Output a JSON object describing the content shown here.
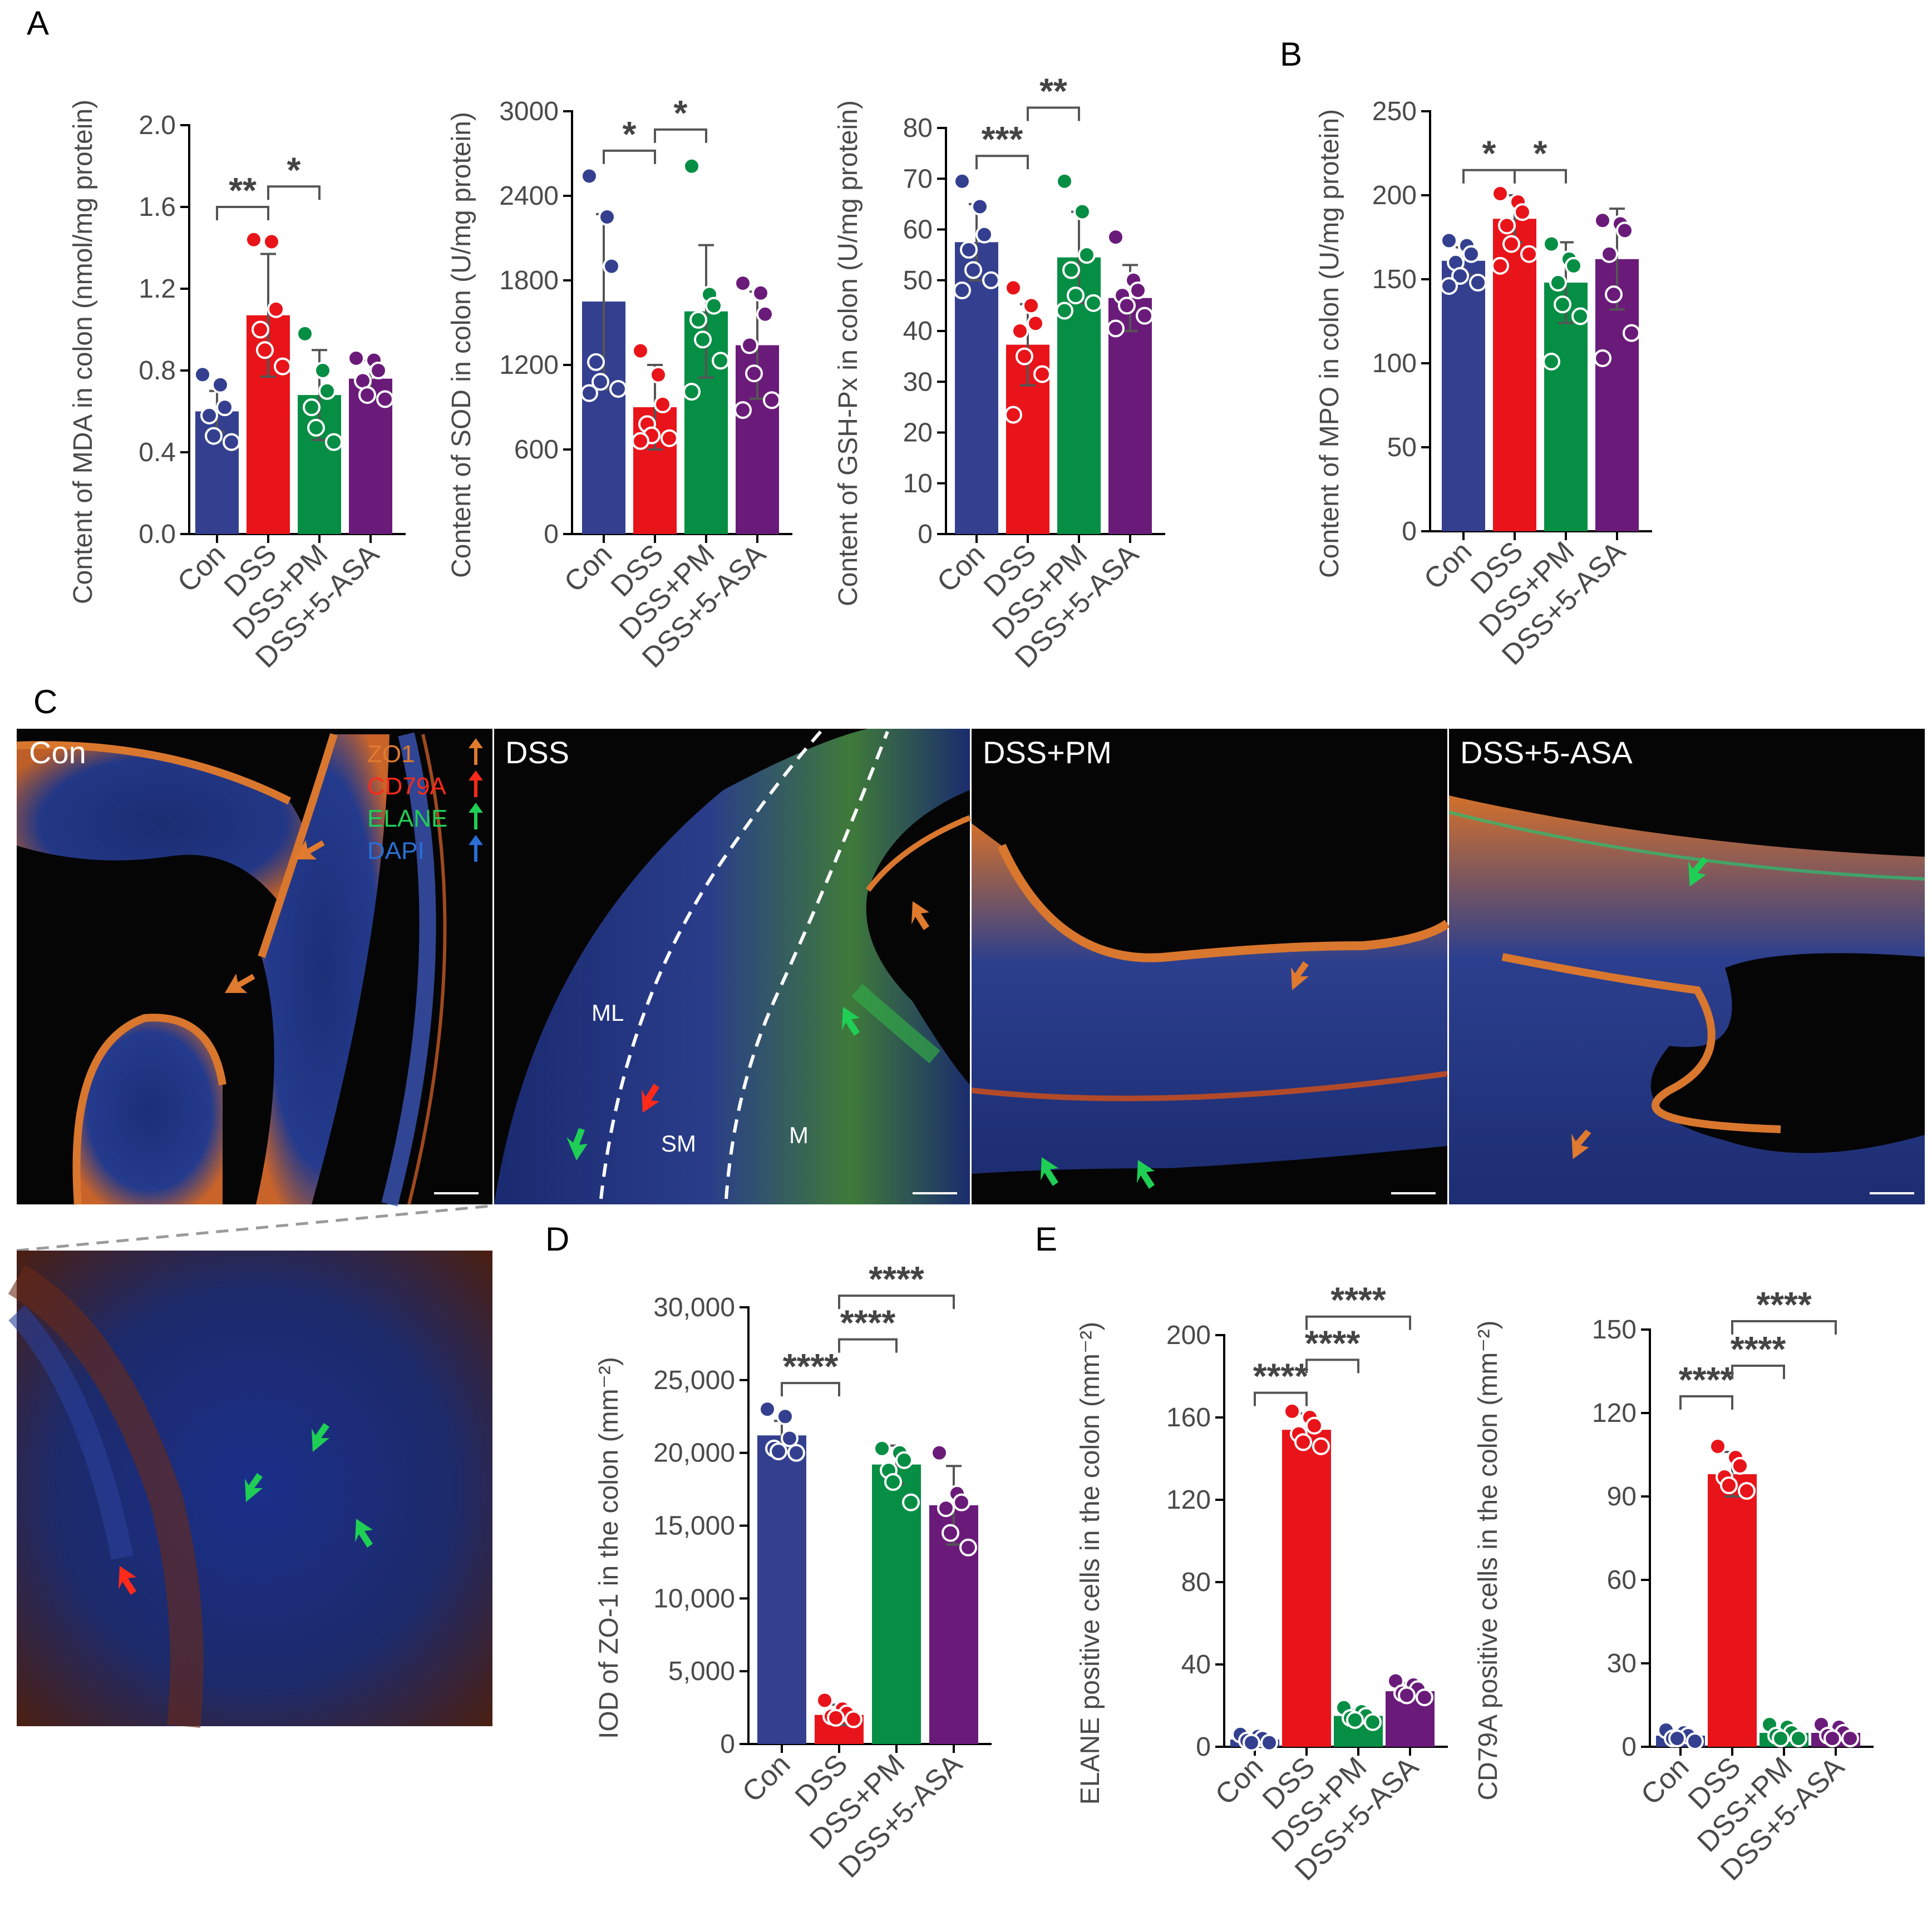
{
  "panel_letters": {
    "A": "A",
    "B": "B",
    "C": "C",
    "D": "D",
    "E": "E"
  },
  "colors": {
    "Con": "#34408f",
    "DSS": "#e8141a",
    "DSS+PM": "#068e44",
    "DSS+5-ASA": "#6a1b7a"
  },
  "images": {
    "panels": [
      {
        "label": "Con"
      },
      {
        "label": "DSS"
      },
      {
        "label": "DSS+PM"
      },
      {
        "label": "DSS+5-ASA"
      }
    ],
    "legend": [
      {
        "text": "ZO1",
        "color": "#e07a2e"
      },
      {
        "text": "CD79A",
        "color": "#ff2a1a"
      },
      {
        "text": "ELANE",
        "color": "#1fcf55"
      },
      {
        "text": "DAPI",
        "color": "#2a6fd6"
      }
    ],
    "dss_region_labels": [
      "ML",
      "SM",
      "M"
    ]
  },
  "chart_data": [
    {
      "id": "mda",
      "panel": "A",
      "type": "bar",
      "categories": [
        "Con",
        "DSS",
        "DSS+PM",
        "DSS+5-ASA"
      ],
      "values": [
        0.6,
        1.07,
        0.68,
        0.76
      ],
      "errors": [
        0.1,
        0.3,
        0.22,
        0.09
      ],
      "points": [
        [
          0.78,
          0.73,
          0.62,
          0.58,
          0.48,
          0.45
        ],
        [
          1.44,
          1.43,
          1.1,
          1.0,
          0.9,
          0.82
        ],
        [
          0.98,
          0.8,
          0.7,
          0.62,
          0.52,
          0.45
        ],
        [
          0.86,
          0.85,
          0.8,
          0.75,
          0.68,
          0.66
        ]
      ],
      "ylabel": "Content of MDA in colon (nmol/mg protein)",
      "ylim": [
        0,
        2.0
      ],
      "yticks": [
        0,
        0.4,
        0.8,
        1.2,
        1.6,
        2.0
      ],
      "yticklabels": [
        "0.0",
        "0.4",
        "0.8",
        "1.2",
        "1.6",
        "2.0"
      ],
      "significance": [
        {
          "from": 0,
          "to": 1,
          "y": 1.6,
          "label": "**"
        },
        {
          "from": 1,
          "to": 2,
          "y": 1.7,
          "label": "*"
        }
      ]
    },
    {
      "id": "sod",
      "panel": "A",
      "type": "bar",
      "categories": [
        "Con",
        "DSS",
        "DSS+PM",
        "DSS+5-ASA"
      ],
      "values": [
        1650,
        900,
        1580,
        1340
      ],
      "errors": [
        620,
        300,
        470,
        380
      ],
      "points": [
        [
          2540,
          2250,
          1900,
          1220,
          1080,
          1030,
          1000
        ],
        [
          1300,
          1130,
          920,
          780,
          700,
          680,
          660
        ],
        [
          2610,
          1700,
          1620,
          1520,
          1380,
          1230,
          1010
        ],
        [
          1780,
          1710,
          1560,
          1340,
          1140,
          950,
          880
        ]
      ],
      "ylabel": "Content of SOD in colon (U/mg protein)",
      "ylim": [
        0,
        3000
      ],
      "yticks": [
        0,
        600,
        1200,
        1800,
        2400,
        3000
      ],
      "yticklabels": [
        "0",
        "600",
        "1200",
        "1800",
        "2400",
        "3000"
      ],
      "significance": [
        {
          "from": 0,
          "to": 1,
          "y": 2720,
          "label": "*"
        },
        {
          "from": 1,
          "to": 2,
          "y": 2870,
          "label": "*"
        }
      ]
    },
    {
      "id": "gshpx",
      "panel": "A",
      "type": "bar",
      "categories": [
        "Con",
        "DSS",
        "DSS+PM",
        "DSS+5-ASA"
      ],
      "values": [
        57.5,
        37.3,
        54.5,
        46.5
      ],
      "errors": [
        7.5,
        8,
        9,
        6.5
      ],
      "points": [
        [
          69.5,
          64.5,
          59,
          56,
          52,
          50,
          48
        ],
        [
          48.5,
          45,
          41.5,
          40,
          35,
          31.5,
          23.5
        ],
        [
          69.5,
          63.5,
          55,
          52,
          47,
          45.5,
          44
        ],
        [
          58.5,
          50,
          48,
          47,
          45,
          43,
          40.5
        ]
      ],
      "ylabel": "Content of GSH-Px in colon (U/mg protein)",
      "ylim": [
        0,
        80
      ],
      "yticks": [
        0,
        10,
        20,
        30,
        40,
        50,
        60,
        70,
        80
      ],
      "yticklabels": [
        "0",
        "10",
        "20",
        "30",
        "40",
        "50",
        "60",
        "70",
        "80"
      ],
      "significance": [
        {
          "from": 0,
          "to": 1,
          "y": 74.5,
          "label": "***"
        },
        {
          "from": 1,
          "to": 2,
          "y": 84,
          "label": "**"
        }
      ]
    },
    {
      "id": "mpo",
      "panel": "B",
      "type": "bar",
      "categories": [
        "Con",
        "DSS",
        "DSS+PM",
        "DSS+5-ASA"
      ],
      "values": [
        161,
        186,
        148,
        162
      ],
      "errors": [
        8,
        14,
        24,
        30
      ],
      "points": [
        [
          173,
          170,
          165,
          160,
          152,
          148,
          146
        ],
        [
          201,
          196,
          190,
          182,
          171,
          165,
          158
        ],
        [
          171,
          162,
          158,
          148,
          135,
          128,
          101
        ],
        [
          185,
          183,
          179,
          165,
          141,
          118,
          103
        ]
      ],
      "ylabel": "Content of MPO in colon (U/mg protein)",
      "ylim": [
        0,
        250
      ],
      "yticks": [
        0,
        50,
        100,
        150,
        200,
        250
      ],
      "yticklabels": [
        "0",
        "50",
        "100",
        "150",
        "200",
        "250"
      ],
      "significance": [
        {
          "from": 0,
          "to": 1,
          "y": 215,
          "label": "*"
        },
        {
          "from": 1,
          "to": 2,
          "y": 215,
          "label": "*"
        }
      ]
    },
    {
      "id": "zo1",
      "panel": "D",
      "type": "bar",
      "categories": [
        "Con",
        "DSS",
        "DSS+PM",
        "DSS+5-ASA"
      ],
      "values": [
        21200,
        2000,
        19200,
        16400
      ],
      "errors": [
        1000,
        700,
        1300,
        2700
      ],
      "points": [
        [
          23000,
          22500,
          21000,
          20300,
          20100,
          20000
        ],
        [
          3000,
          2400,
          2100,
          1900,
          1800,
          1700
        ],
        [
          20300,
          20000,
          19500,
          18800,
          18000,
          16600
        ],
        [
          20000,
          17200,
          16600,
          16200,
          14500,
          13500
        ]
      ],
      "ylabel": "IOD of ZO-1 in the colon (mm⁻²)",
      "ylim": [
        0,
        30000
      ],
      "yticks": [
        0,
        5000,
        10000,
        15000,
        20000,
        25000,
        30000
      ],
      "yticklabels": [
        "0",
        "5,000",
        "10,000",
        "15,000",
        "20,000",
        "25,000",
        "30,000"
      ],
      "significance": [
        {
          "from": 0,
          "to": 1,
          "y": 24800,
          "label": "****"
        },
        {
          "from": 1,
          "to": 2,
          "y": 27800,
          "label": "****"
        },
        {
          "from": 1,
          "to": 3,
          "y": 30800,
          "label": "****"
        }
      ]
    },
    {
      "id": "elane",
      "panel": "E",
      "type": "bar",
      "categories": [
        "Con",
        "DSS",
        "DSS+PM",
        "DSS+5-ASA"
      ],
      "values": [
        3.5,
        154,
        15,
        27
      ],
      "errors": [
        2,
        8,
        3,
        4
      ],
      "points": [
        [
          6,
          5,
          4,
          3,
          2,
          2
        ],
        [
          163,
          160,
          156,
          152,
          148,
          146
        ],
        [
          19,
          17,
          15,
          14,
          13,
          12
        ],
        [
          32,
          30,
          28,
          26,
          25,
          24
        ]
      ],
      "ylabel": "ELANE positive cells in the colon (mm⁻²)",
      "ylim": [
        0,
        200
      ],
      "yticks": [
        0,
        40,
        80,
        120,
        160,
        200
      ],
      "yticklabels": [
        "0",
        "40",
        "80",
        "120",
        "160",
        "200"
      ],
      "significance": [
        {
          "from": 0,
          "to": 1,
          "y": 172,
          "label": "****"
        },
        {
          "from": 1,
          "to": 2,
          "y": 188,
          "label": "****"
        },
        {
          "from": 1,
          "to": 3,
          "y": 209,
          "label": "****"
        }
      ]
    },
    {
      "id": "cd79a",
      "panel": "E",
      "type": "bar",
      "categories": [
        "Con",
        "DSS",
        "DSS+PM",
        "DSS+5-ASA"
      ],
      "values": [
        4,
        98,
        5,
        5
      ],
      "errors": [
        1.5,
        8,
        1.5,
        2
      ],
      "points": [
        [
          6,
          5,
          4,
          3,
          3,
          2
        ],
        [
          108,
          104,
          101,
          97,
          94,
          92
        ],
        [
          8,
          7,
          5,
          4,
          3,
          3
        ],
        [
          8,
          7,
          5,
          4,
          3,
          3
        ]
      ],
      "ylabel": "CD79A positive cells in the colon (mm⁻²)",
      "ylim": [
        0,
        150
      ],
      "yticks": [
        0,
        30,
        60,
        90,
        120,
        150
      ],
      "yticklabels": [
        "0",
        "30",
        "60",
        "90",
        "120",
        "150"
      ],
      "significance": [
        {
          "from": 0,
          "to": 1,
          "y": 126,
          "label": "****"
        },
        {
          "from": 1,
          "to": 2,
          "y": 137,
          "label": "****"
        },
        {
          "from": 1,
          "to": 3,
          "y": 153,
          "label": "****"
        }
      ]
    }
  ]
}
